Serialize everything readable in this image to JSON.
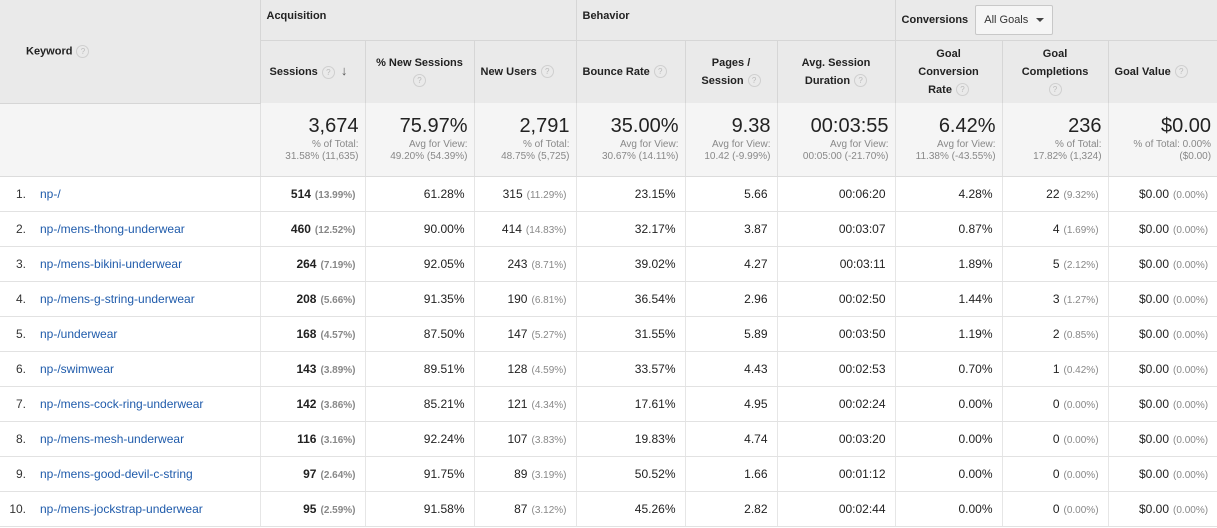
{
  "groups": {
    "acquisition": "Acquisition",
    "behavior": "Behavior",
    "conversions": "Conversions",
    "goal_select": "All Goals"
  },
  "columns": {
    "keyword": "Keyword",
    "sessions": "Sessions",
    "new_sessions_pct": "% New Sessions",
    "new_users": "New Users",
    "bounce_rate": "Bounce Rate",
    "pages_session_1": "Pages /",
    "pages_session_2": "Session",
    "avg_duration_1": "Avg. Session",
    "avg_duration_2": "Duration",
    "goal_conv_1": "Goal",
    "goal_conv_2": "Conversion",
    "goal_conv_3": "Rate",
    "goal_comp_1": "Goal",
    "goal_comp_2": "Completions",
    "goal_value": "Goal Value"
  },
  "totals": {
    "sessions": "3,674",
    "sessions_sub1": "% of Total:",
    "sessions_sub2": "31.58% (11,635)",
    "new_sessions": "75.97%",
    "new_sessions_sub1": "Avg for View:",
    "new_sessions_sub2": "49.20% (54.39%)",
    "new_users": "2,791",
    "new_users_sub1": "% of Total:",
    "new_users_sub2": "48.75% (5,725)",
    "bounce": "35.00%",
    "bounce_sub1": "Avg for View:",
    "bounce_sub2": "30.67% (14.11%)",
    "pages": "9.38",
    "pages_sub1": "Avg for View:",
    "pages_sub2": "10.42 (-9.99%)",
    "duration": "00:03:55",
    "duration_sub1": "Avg for View:",
    "duration_sub2": "00:05:00 (-21.70%)",
    "conv": "6.42%",
    "conv_sub1": "Avg for View:",
    "conv_sub2": "11.38% (-43.55%)",
    "comp": "236",
    "comp_sub1": "% of Total:",
    "comp_sub2": "17.82% (1,324)",
    "value": "$0.00",
    "value_sub1": "% of Total: 0.00%",
    "value_sub2": "($0.00)"
  },
  "rows": [
    {
      "idx": "1.",
      "kw": "np-/",
      "sess": "514",
      "sess_pct": "(13.99%)",
      "ns": "61.28%",
      "nu": "315",
      "nu_pct": "(11.29%)",
      "br": "23.15%",
      "ps": "5.66",
      "dur": "00:06:20",
      "cr": "4.28%",
      "gc": "22",
      "gc_pct": "(9.32%)",
      "gv": "$0.00",
      "gv_pct": "(0.00%)"
    },
    {
      "idx": "2.",
      "kw": "np-/mens-thong-underwear",
      "sess": "460",
      "sess_pct": "(12.52%)",
      "ns": "90.00%",
      "nu": "414",
      "nu_pct": "(14.83%)",
      "br": "32.17%",
      "ps": "3.87",
      "dur": "00:03:07",
      "cr": "0.87%",
      "gc": "4",
      "gc_pct": "(1.69%)",
      "gv": "$0.00",
      "gv_pct": "(0.00%)"
    },
    {
      "idx": "3.",
      "kw": "np-/mens-bikini-underwear",
      "sess": "264",
      "sess_pct": "(7.19%)",
      "ns": "92.05%",
      "nu": "243",
      "nu_pct": "(8.71%)",
      "br": "39.02%",
      "ps": "4.27",
      "dur": "00:03:11",
      "cr": "1.89%",
      "gc": "5",
      "gc_pct": "(2.12%)",
      "gv": "$0.00",
      "gv_pct": "(0.00%)"
    },
    {
      "idx": "4.",
      "kw": "np-/mens-g-string-underwear",
      "sess": "208",
      "sess_pct": "(5.66%)",
      "ns": "91.35%",
      "nu": "190",
      "nu_pct": "(6.81%)",
      "br": "36.54%",
      "ps": "2.96",
      "dur": "00:02:50",
      "cr": "1.44%",
      "gc": "3",
      "gc_pct": "(1.27%)",
      "gv": "$0.00",
      "gv_pct": "(0.00%)"
    },
    {
      "idx": "5.",
      "kw": "np-/underwear",
      "sess": "168",
      "sess_pct": "(4.57%)",
      "ns": "87.50%",
      "nu": "147",
      "nu_pct": "(5.27%)",
      "br": "31.55%",
      "ps": "5.89",
      "dur": "00:03:50",
      "cr": "1.19%",
      "gc": "2",
      "gc_pct": "(0.85%)",
      "gv": "$0.00",
      "gv_pct": "(0.00%)"
    },
    {
      "idx": "6.",
      "kw": "np-/swimwear",
      "sess": "143",
      "sess_pct": "(3.89%)",
      "ns": "89.51%",
      "nu": "128",
      "nu_pct": "(4.59%)",
      "br": "33.57%",
      "ps": "4.43",
      "dur": "00:02:53",
      "cr": "0.70%",
      "gc": "1",
      "gc_pct": "(0.42%)",
      "gv": "$0.00",
      "gv_pct": "(0.00%)"
    },
    {
      "idx": "7.",
      "kw": "np-/mens-cock-ring-underwear",
      "sess": "142",
      "sess_pct": "(3.86%)",
      "ns": "85.21%",
      "nu": "121",
      "nu_pct": "(4.34%)",
      "br": "17.61%",
      "ps": "4.95",
      "dur": "00:02:24",
      "cr": "0.00%",
      "gc": "0",
      "gc_pct": "(0.00%)",
      "gv": "$0.00",
      "gv_pct": "(0.00%)"
    },
    {
      "idx": "8.",
      "kw": "np-/mens-mesh-underwear",
      "sess": "116",
      "sess_pct": "(3.16%)",
      "ns": "92.24%",
      "nu": "107",
      "nu_pct": "(3.83%)",
      "br": "19.83%",
      "ps": "4.74",
      "dur": "00:03:20",
      "cr": "0.00%",
      "gc": "0",
      "gc_pct": "(0.00%)",
      "gv": "$0.00",
      "gv_pct": "(0.00%)"
    },
    {
      "idx": "9.",
      "kw": "np-/mens-good-devil-c-string",
      "sess": "97",
      "sess_pct": "(2.64%)",
      "ns": "91.75%",
      "nu": "89",
      "nu_pct": "(3.19%)",
      "br": "50.52%",
      "ps": "1.66",
      "dur": "00:01:12",
      "cr": "0.00%",
      "gc": "0",
      "gc_pct": "(0.00%)",
      "gv": "$0.00",
      "gv_pct": "(0.00%)"
    },
    {
      "idx": "10.",
      "kw": "np-/mens-jockstrap-underwear",
      "sess": "95",
      "sess_pct": "(2.59%)",
      "ns": "91.58%",
      "nu": "87",
      "nu_pct": "(3.12%)",
      "br": "45.26%",
      "ps": "2.82",
      "dur": "00:02:44",
      "cr": "0.00%",
      "gc": "0",
      "gc_pct": "(0.00%)",
      "gv": "$0.00",
      "gv_pct": "(0.00%)"
    }
  ]
}
